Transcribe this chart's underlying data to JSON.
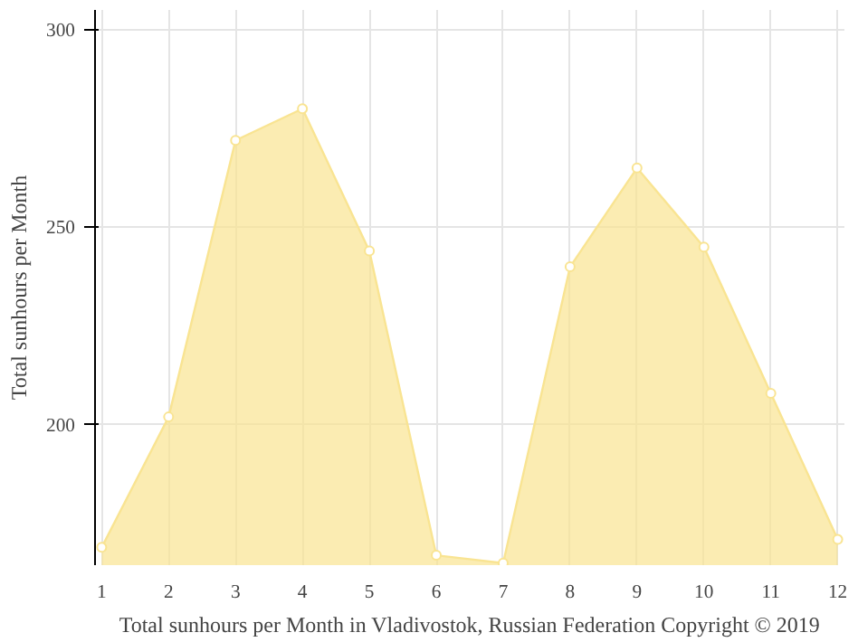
{
  "chart_data": {
    "type": "area",
    "xlabel": "Total sunhours per Month in Vladivostok, Russian Federation Copyright © 2019",
    "ylabel": "Total sunhours per Month",
    "x": [
      1,
      2,
      3,
      4,
      5,
      6,
      7,
      8,
      9,
      10,
      11,
      12
    ],
    "series": [
      {
        "color": "#f9e492",
        "values": [
          169,
          202,
          272,
          280,
          244,
          167,
          165,
          240,
          265,
          245,
          208,
          171
        ]
      }
    ],
    "xlim": [
      0.9,
      12.1
    ],
    "ylim": [
      164.5,
      305
    ],
    "xticks": [
      1,
      2,
      3,
      4,
      5,
      6,
      7,
      8,
      9,
      10,
      11,
      12
    ],
    "yticks": [
      200,
      250,
      300
    ],
    "grid": true,
    "marker": "circle"
  }
}
